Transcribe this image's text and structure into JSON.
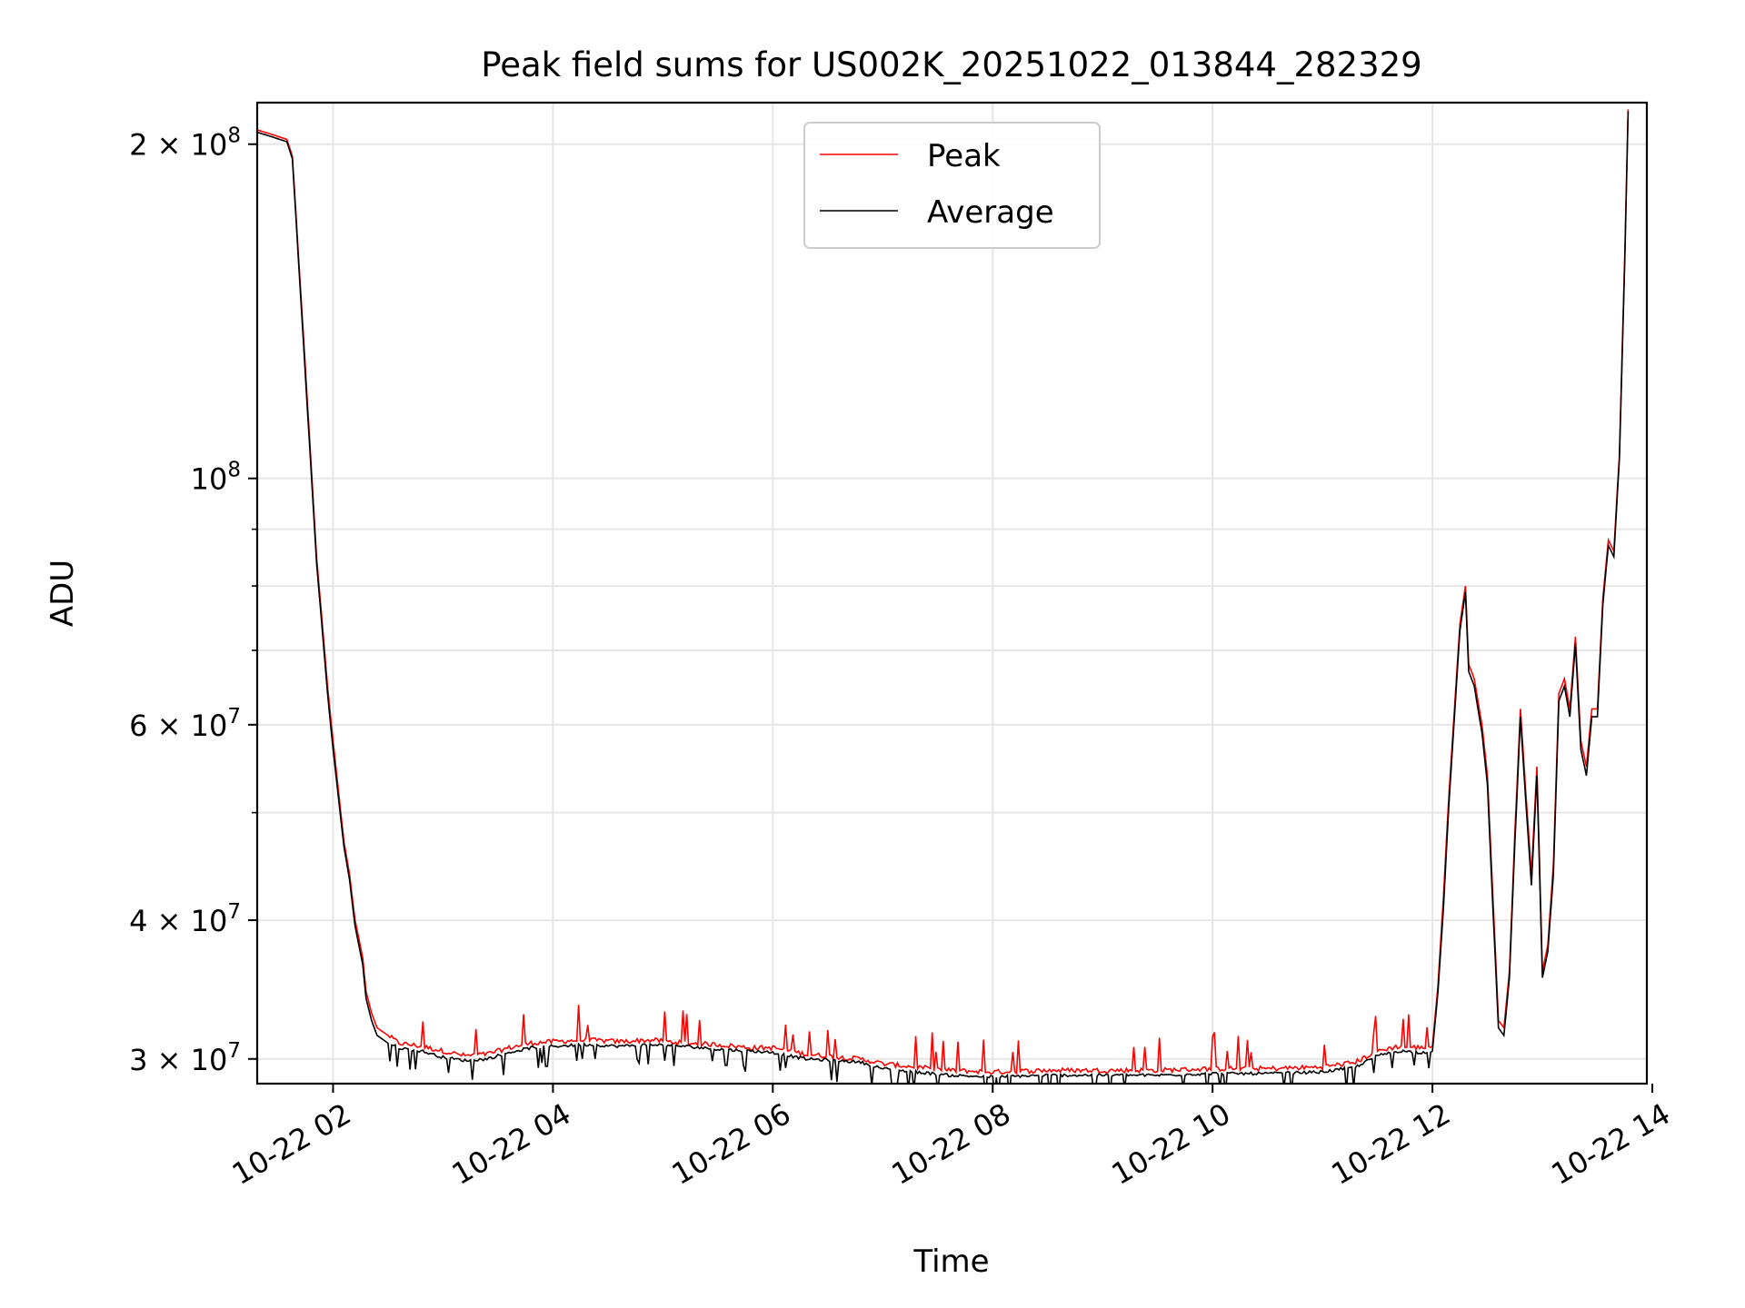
{
  "chart_data": {
    "type": "line",
    "title": "Peak field sums for US002K_20251022_013844_282329",
    "xlabel": "Time",
    "ylabel": "ADU",
    "x_units": "hours since 2025-10-22 00:00",
    "xlim": [
      1.31,
      13.95
    ],
    "ylim": [
      28500000,
      218000000
    ],
    "yscale": "log",
    "grid": true,
    "legend_position": "top-center",
    "x_ticks": [
      {
        "value": 2,
        "label": "10-22 02"
      },
      {
        "value": 4,
        "label": "10-22 04"
      },
      {
        "value": 6,
        "label": "10-22 06"
      },
      {
        "value": 8,
        "label": "10-22 08"
      },
      {
        "value": 10,
        "label": "10-22 10"
      },
      {
        "value": 12,
        "label": "10-22 12"
      },
      {
        "value": 14,
        "label": "10-22 14"
      }
    ],
    "y_ticks_major": [
      {
        "value": 30000000,
        "mantissa": "3",
        "exp": "7"
      },
      {
        "value": 40000000,
        "mantissa": "4",
        "exp": "7"
      },
      {
        "value": 60000000,
        "mantissa": "6",
        "exp": "7"
      },
      {
        "value": 100000000,
        "mantissa": "",
        "exp": "8"
      },
      {
        "value": 200000000,
        "mantissa": "2",
        "exp": "8"
      }
    ],
    "y_ticks_minor": [
      50000000,
      70000000,
      80000000,
      90000000
    ],
    "series": [
      {
        "name": "Peak",
        "color": "#ff0000",
        "x": [
          1.31,
          1.45,
          1.58,
          1.63,
          1.75,
          1.85,
          1.95,
          2.0,
          2.1,
          2.15,
          2.2,
          2.27,
          2.3,
          2.35,
          2.4,
          2.5,
          2.6,
          2.8,
          3.0,
          3.2,
          3.4,
          3.6,
          3.8,
          4.0,
          4.3,
          4.6,
          4.9,
          5.2,
          5.5,
          5.8,
          6.0,
          6.3,
          6.6,
          6.8,
          7.0,
          7.3,
          7.6,
          8.0,
          8.5,
          9.0,
          9.5,
          10.0,
          10.5,
          11.0,
          11.3,
          11.5,
          11.7,
          11.9,
          12.0,
          12.05,
          12.1,
          12.15,
          12.2,
          12.25,
          12.3,
          12.33,
          12.38,
          12.45,
          12.5,
          12.55,
          12.6,
          12.65,
          12.7,
          12.75,
          12.8,
          12.85,
          12.9,
          12.95,
          13.0,
          13.05,
          13.1,
          13.15,
          13.2,
          13.25,
          13.3,
          13.35,
          13.4,
          13.45,
          13.5,
          13.55,
          13.6,
          13.65,
          13.7,
          13.75,
          13.78
        ],
        "y": [
          206000000,
          204000000,
          202000000,
          195000000,
          125000000,
          85000000,
          65000000,
          58000000,
          47000000,
          44000000,
          40000000,
          37000000,
          34500000,
          33000000,
          32000000,
          31500000,
          31000000,
          30800000,
          30500000,
          30200000,
          30300000,
          30700000,
          31000000,
          31100000,
          31200000,
          31100000,
          31200000,
          31000000,
          30900000,
          30700000,
          30700000,
          30300000,
          30100000,
          30000000,
          29700000,
          29500000,
          29300000,
          29200000,
          29300000,
          29300000,
          29300000,
          29400000,
          29400000,
          29500000,
          29800000,
          30500000,
          30800000,
          30700000,
          30800000,
          35000000,
          42000000,
          52000000,
          62000000,
          74000000,
          80000000,
          68000000,
          66000000,
          60000000,
          54000000,
          42000000,
          32500000,
          32000000,
          36000000,
          48000000,
          62000000,
          52000000,
          44000000,
          55000000,
          36000000,
          38000000,
          45000000,
          64000000,
          66000000,
          62000000,
          72000000,
          58000000,
          55000000,
          62000000,
          62000000,
          78000000,
          88000000,
          86000000,
          105000000,
          160000000,
          215000000
        ]
      },
      {
        "name": "Average",
        "color": "#000000",
        "x": [
          1.31,
          1.45,
          1.58,
          1.63,
          1.75,
          1.85,
          1.95,
          2.0,
          2.1,
          2.15,
          2.2,
          2.27,
          2.3,
          2.35,
          2.4,
          2.5,
          2.6,
          2.8,
          3.0,
          3.2,
          3.4,
          3.6,
          3.8,
          4.0,
          4.3,
          4.6,
          4.9,
          5.2,
          5.5,
          5.8,
          6.0,
          6.3,
          6.6,
          6.8,
          7.0,
          7.3,
          7.6,
          8.0,
          8.5,
          9.0,
          9.5,
          10.0,
          10.5,
          11.0,
          11.3,
          11.5,
          11.7,
          11.9,
          12.0,
          12.05,
          12.1,
          12.15,
          12.2,
          12.25,
          12.3,
          12.33,
          12.38,
          12.45,
          12.5,
          12.55,
          12.6,
          12.65,
          12.7,
          12.75,
          12.8,
          12.85,
          12.9,
          12.95,
          13.0,
          13.05,
          13.1,
          13.15,
          13.2,
          13.25,
          13.3,
          13.35,
          13.4,
          13.45,
          13.5,
          13.55,
          13.6,
          13.65,
          13.7,
          13.75,
          13.78
        ],
        "y": [
          205000000,
          203000000,
          201000000,
          194000000,
          123000000,
          84000000,
          64000000,
          57000000,
          46500000,
          43500000,
          39500000,
          36500000,
          34000000,
          32500000,
          31500000,
          31000000,
          30700000,
          30500000,
          30100000,
          29900000,
          30000000,
          30400000,
          30700000,
          30800000,
          30900000,
          30800000,
          30900000,
          30800000,
          30600000,
          30500000,
          30400000,
          30000000,
          29900000,
          29800000,
          29400000,
          29200000,
          29000000,
          28900000,
          29000000,
          29000000,
          29000000,
          29100000,
          29100000,
          29200000,
          29500000,
          30200000,
          30500000,
          30400000,
          30500000,
          34500000,
          41000000,
          51000000,
          61000000,
          73000000,
          79000000,
          67000000,
          65000000,
          59000000,
          53000000,
          41000000,
          32000000,
          31500000,
          35500000,
          47000000,
          61000000,
          51000000,
          43000000,
          54000000,
          35500000,
          37500000,
          44000000,
          63000000,
          65000000,
          61000000,
          71000000,
          57000000,
          54000000,
          61000000,
          61000000,
          77000000,
          87000000,
          85000000,
          104000000,
          158000000,
          214000000
        ]
      }
    ]
  }
}
